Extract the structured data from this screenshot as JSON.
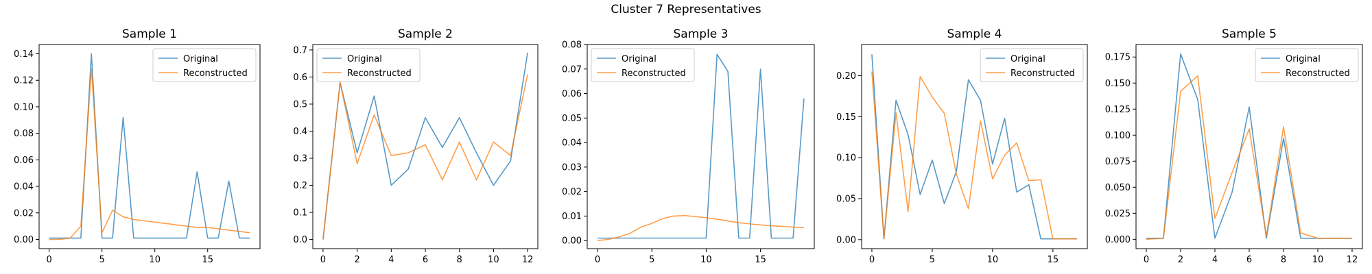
{
  "figure": {
    "title": "Cluster 7 Representatives"
  },
  "colors": {
    "original": "#1f77b4",
    "reconstructed": "#ff7f0e"
  },
  "chart_data": [
    {
      "type": "line",
      "title": "Sample 1",
      "xlim": [
        -0.95,
        19.95
      ],
      "ylim": [
        -0.007,
        0.147
      ],
      "xticks": [
        0,
        5,
        10,
        15
      ],
      "yticks": [
        0.0,
        0.02,
        0.04,
        0.06,
        0.08,
        0.1,
        0.12,
        0.14
      ],
      "ytick_labels": [
        "0.00",
        "0.02",
        "0.04",
        "0.06",
        "0.08",
        "0.10",
        "0.12",
        "0.14"
      ],
      "legend": {
        "loc": "upper-right",
        "labels": [
          "Original",
          "Reconstructed"
        ]
      },
      "series": [
        {
          "name": "Original",
          "x": [
            0,
            1,
            2,
            3,
            4,
            5,
            6,
            7,
            8,
            9,
            10,
            11,
            12,
            13,
            14,
            15,
            16,
            17,
            18,
            19
          ],
          "values": [
            0.001,
            0.001,
            0.001,
            0.001,
            0.14,
            0.001,
            0.001,
            0.092,
            0.001,
            0.001,
            0.001,
            0.001,
            0.001,
            0.001,
            0.051,
            0.001,
            0.001,
            0.044,
            0.001,
            0.001
          ]
        },
        {
          "name": "Reconstructed",
          "x": [
            0,
            1,
            2,
            3,
            4,
            5,
            6,
            7,
            8,
            9,
            10,
            11,
            12,
            13,
            14,
            15,
            16,
            17,
            18,
            19
          ],
          "values": [
            0.0,
            0.0,
            0.001,
            0.01,
            0.129,
            0.005,
            0.022,
            0.017,
            0.015,
            0.014,
            0.013,
            0.012,
            0.011,
            0.01,
            0.009,
            0.009,
            0.008,
            0.007,
            0.006,
            0.005
          ]
        }
      ]
    },
    {
      "type": "line",
      "title": "Sample 2",
      "xlim": [
        -0.6,
        12.6
      ],
      "ylim": [
        -0.034,
        0.72
      ],
      "xticks": [
        0,
        2,
        4,
        6,
        8,
        10,
        12
      ],
      "yticks": [
        0.0,
        0.1,
        0.2,
        0.3,
        0.4,
        0.5,
        0.6,
        0.7
      ],
      "ytick_labels": [
        "0.0",
        "0.1",
        "0.2",
        "0.3",
        "0.4",
        "0.5",
        "0.6",
        "0.7"
      ],
      "legend": {
        "loc": "upper-left",
        "labels": [
          "Original",
          "Reconstructed"
        ]
      },
      "series": [
        {
          "name": "Original",
          "x": [
            0,
            1,
            2,
            3,
            4,
            5,
            6,
            7,
            8,
            9,
            10,
            11,
            12
          ],
          "values": [
            0.0,
            0.58,
            0.32,
            0.53,
            0.2,
            0.26,
            0.45,
            0.34,
            0.45,
            0.32,
            0.2,
            0.29,
            0.69
          ]
        },
        {
          "name": "Reconstructed",
          "x": [
            0,
            1,
            2,
            3,
            4,
            5,
            6,
            7,
            8,
            9,
            10,
            11,
            12
          ],
          "values": [
            0.0,
            0.58,
            0.28,
            0.46,
            0.31,
            0.32,
            0.35,
            0.22,
            0.36,
            0.22,
            0.36,
            0.31,
            0.61
          ]
        }
      ]
    },
    {
      "type": "line",
      "title": "Sample 3",
      "xlim": [
        -0.95,
        19.95
      ],
      "ylim": [
        -0.0033,
        0.08
      ],
      "xticks": [
        0,
        5,
        10,
        15
      ],
      "yticks": [
        0.0,
        0.01,
        0.02,
        0.03,
        0.04,
        0.05,
        0.06,
        0.07,
        0.08
      ],
      "ytick_labels": [
        "0.00",
        "0.01",
        "0.02",
        "0.03",
        "0.04",
        "0.05",
        "0.06",
        "0.07",
        "0.08"
      ],
      "legend": {
        "loc": "upper-left",
        "labels": [
          "Original",
          "Reconstructed"
        ]
      },
      "series": [
        {
          "name": "Original",
          "x": [
            0,
            1,
            2,
            3,
            4,
            5,
            6,
            7,
            8,
            9,
            10,
            11,
            12,
            13,
            14,
            15,
            16,
            17,
            18,
            19
          ],
          "values": [
            0.001,
            0.001,
            0.001,
            0.001,
            0.001,
            0.001,
            0.001,
            0.001,
            0.001,
            0.001,
            0.001,
            0.076,
            0.069,
            0.001,
            0.001,
            0.07,
            0.001,
            0.001,
            0.001,
            0.058
          ]
        },
        {
          "name": "Reconstructed",
          "x": [
            0,
            1,
            2,
            3,
            4,
            5,
            6,
            7,
            8,
            9,
            10,
            11,
            12,
            13,
            14,
            15,
            16,
            17,
            18,
            19
          ],
          "values": [
            0.0,
            0.0005,
            0.0015,
            0.003,
            0.0055,
            0.007,
            0.009,
            0.01,
            0.0102,
            0.0098,
            0.0093,
            0.0087,
            0.008,
            0.0073,
            0.0068,
            0.0064,
            0.006,
            0.0058,
            0.0055,
            0.0053
          ]
        }
      ]
    },
    {
      "type": "line",
      "title": "Sample 4",
      "xlim": [
        -0.85,
        17.85
      ],
      "ylim": [
        -0.011,
        0.238
      ],
      "xticks": [
        0,
        5,
        10,
        15
      ],
      "yticks": [
        0.0,
        0.05,
        0.1,
        0.15,
        0.2
      ],
      "ytick_labels": [
        "0.00",
        "0.05",
        "0.10",
        "0.15",
        "0.20"
      ],
      "legend": {
        "loc": "upper-right",
        "labels": [
          "Original",
          "Reconstructed"
        ]
      },
      "series": [
        {
          "name": "Original",
          "x": [
            0,
            1,
            2,
            3,
            4,
            5,
            6,
            7,
            8,
            9,
            10,
            11,
            12,
            13,
            14,
            15,
            16,
            17
          ],
          "values": [
            0.226,
            0.001,
            0.17,
            0.128,
            0.055,
            0.097,
            0.044,
            0.083,
            0.195,
            0.17,
            0.092,
            0.148,
            0.058,
            0.067,
            0.001,
            0.001,
            0.001,
            0.001
          ]
        },
        {
          "name": "Reconstructed",
          "x": [
            0,
            1,
            2,
            3,
            4,
            5,
            6,
            7,
            8,
            9,
            10,
            11,
            12,
            13,
            14,
            15,
            16,
            17
          ],
          "values": [
            0.205,
            0.001,
            0.155,
            0.034,
            0.199,
            0.174,
            0.154,
            0.08,
            0.038,
            0.145,
            0.074,
            0.103,
            0.118,
            0.072,
            0.073,
            0.001,
            0.001,
            0.001
          ]
        }
      ]
    },
    {
      "type": "line",
      "title": "Sample 5",
      "xlim": [
        -0.6,
        12.6
      ],
      "ylim": [
        -0.009,
        0.187
      ],
      "xticks": [
        0,
        2,
        4,
        6,
        8,
        10,
        12
      ],
      "yticks": [
        0.0,
        0.025,
        0.05,
        0.075,
        0.1,
        0.125,
        0.15,
        0.175
      ],
      "ytick_labels": [
        "0.000",
        "0.025",
        "0.050",
        "0.075",
        "0.100",
        "0.125",
        "0.150",
        "0.175"
      ],
      "legend": {
        "loc": "upper-right",
        "labels": [
          "Original",
          "Reconstructed"
        ]
      },
      "series": [
        {
          "name": "Original",
          "x": [
            0,
            1,
            2,
            3,
            4,
            5,
            6,
            7,
            8,
            9,
            10,
            11,
            12
          ],
          "values": [
            0.001,
            0.001,
            0.178,
            0.134,
            0.001,
            0.045,
            0.127,
            0.001,
            0.097,
            0.001,
            0.001,
            0.001,
            0.001
          ]
        },
        {
          "name": "Reconstructed",
          "x": [
            0,
            1,
            2,
            3,
            4,
            5,
            6,
            7,
            8,
            9,
            10,
            11,
            12
          ],
          "values": [
            0.0,
            0.001,
            0.142,
            0.157,
            0.02,
            0.064,
            0.106,
            0.003,
            0.108,
            0.006,
            0.001,
            0.001,
            0.001
          ]
        }
      ]
    }
  ]
}
